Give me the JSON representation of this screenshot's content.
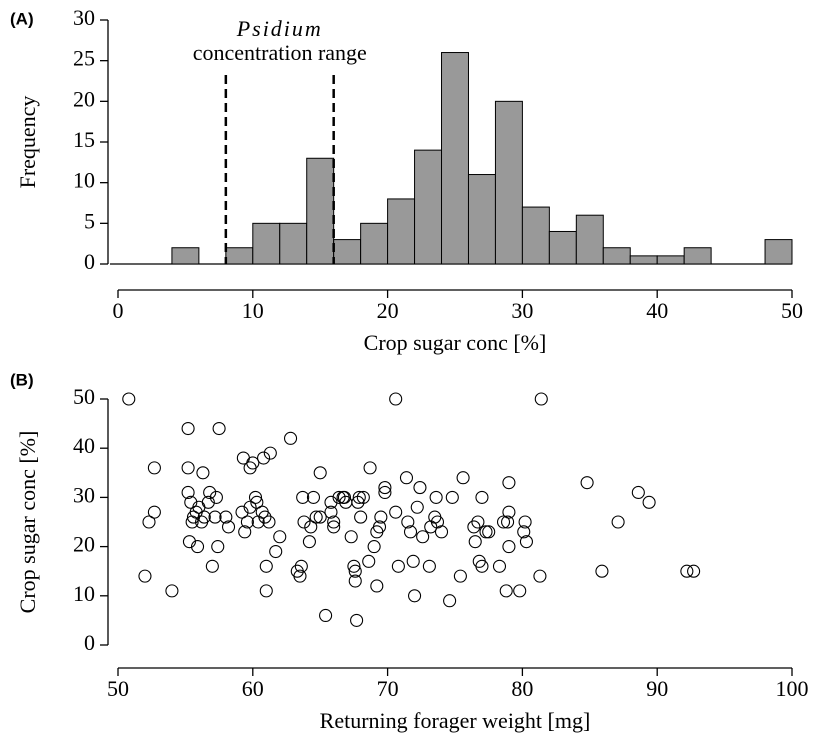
{
  "chart_data": [
    {
      "type": "histogram",
      "panel_label": "(A)",
      "x_label": "Crop sugar conc [%]",
      "y_label": "Frequency",
      "bins": [
        0,
        2,
        4,
        6,
        8,
        10,
        12,
        14,
        16,
        18,
        20,
        22,
        24,
        26,
        28,
        30,
        32,
        34,
        36,
        38,
        40,
        42,
        44,
        46,
        48,
        50
      ],
      "counts": [
        0,
        0,
        2,
        0,
        2,
        5,
        5,
        13,
        3,
        5,
        8,
        14,
        26,
        11,
        20,
        7,
        4,
        6,
        2,
        1,
        1,
        2,
        0,
        0,
        3
      ],
      "color": "#999999",
      "xlim": [
        0,
        50
      ],
      "xticks": [
        0,
        10,
        20,
        30,
        40,
        50
      ],
      "ylim": [
        0,
        30
      ],
      "yticks": [
        0,
        5,
        10,
        15,
        20,
        25,
        30
      ],
      "reference_lines": [
        8,
        16
      ],
      "annotation_title": "Psidium",
      "annotation": "concentration range"
    },
    {
      "type": "scatter",
      "panel_label": "(B)",
      "x_label": "Returning forager weight [mg]",
      "y_label": "Crop sugar conc [%]",
      "xlim": [
        50,
        100
      ],
      "xticks": [
        50,
        60,
        70,
        80,
        90,
        100
      ],
      "ylim": [
        0,
        50
      ],
      "yticks": [
        0,
        10,
        20,
        30,
        40,
        50
      ],
      "x": [
        50.8,
        52,
        52.3,
        52.7,
        52.7,
        54,
        55.2,
        55.2,
        55.2,
        55.3,
        55.4,
        55.5,
        55.6,
        55.8,
        55.9,
        56,
        56.2,
        56.3,
        56.4,
        56.7,
        56.8,
        57,
        57.2,
        57.3,
        57.4,
        57.5,
        58,
        58.2,
        59.2,
        59.3,
        59.4,
        59.6,
        59.8,
        59.8,
        60,
        60.2,
        60.3,
        60.4,
        60.7,
        60.8,
        60.9,
        61,
        61,
        61.2,
        61.3,
        61.7,
        62,
        62.8,
        63.3,
        63.5,
        63.6,
        63.7,
        63.8,
        64.2,
        64.3,
        64.5,
        64.7,
        65,
        65,
        65.4,
        65.8,
        65.8,
        66,
        66,
        66.4,
        66.7,
        66.8,
        66.9,
        67.3,
        67.5,
        67.6,
        67.6,
        67.7,
        67.8,
        67.9,
        68,
        68.2,
        68.6,
        68.7,
        69,
        69.2,
        69.2,
        69.4,
        69.5,
        69.8,
        69.8,
        70.6,
        70.6,
        70.8,
        71.4,
        71.5,
        71.7,
        71.9,
        72,
        72.2,
        72.4,
        72.6,
        73.1,
        73.2,
        73.5,
        73.6,
        73.7,
        74,
        74.6,
        74.8,
        75.4,
        75.6,
        76.4,
        76.5,
        76.7,
        76.8,
        77,
        77,
        77.3,
        77.5,
        78.3,
        78.6,
        78.8,
        78.9,
        79,
        79,
        79,
        79.8,
        80.1,
        80.2,
        80.3,
        81.3,
        81.4,
        84.8,
        85.9,
        87.1,
        88.6,
        89.4,
        92.2,
        92.7
      ],
      "y": [
        50,
        14,
        25,
        27,
        36,
        11,
        44,
        36,
        31,
        21,
        29,
        25,
        26,
        27,
        20,
        28,
        25,
        35,
        26,
        29,
        31,
        16,
        26,
        30,
        20,
        44,
        26,
        24,
        27,
        38,
        23,
        25,
        28,
        36,
        37,
        30,
        29,
        25,
        27,
        38,
        26,
        16,
        11,
        25,
        39,
        19,
        22,
        42,
        15,
        14,
        16,
        30,
        25,
        21,
        24,
        30,
        26,
        35,
        26,
        6,
        27,
        29,
        24,
        25,
        30,
        30,
        30,
        29,
        22,
        16,
        15,
        13,
        5,
        29,
        30,
        26,
        30,
        17,
        36,
        20,
        23,
        12,
        24,
        26,
        32,
        31,
        50,
        27,
        16,
        34,
        25,
        23,
        17,
        10,
        28,
        32,
        22,
        16,
        24,
        26,
        30,
        25,
        23,
        9,
        30,
        14,
        34,
        24,
        21,
        25,
        17,
        30,
        16,
        23,
        23,
        16,
        25,
        11,
        25,
        20,
        27,
        33,
        11,
        23,
        25,
        21,
        14,
        50,
        33,
        15,
        25,
        31,
        29,
        15,
        15
      ]
    }
  ]
}
